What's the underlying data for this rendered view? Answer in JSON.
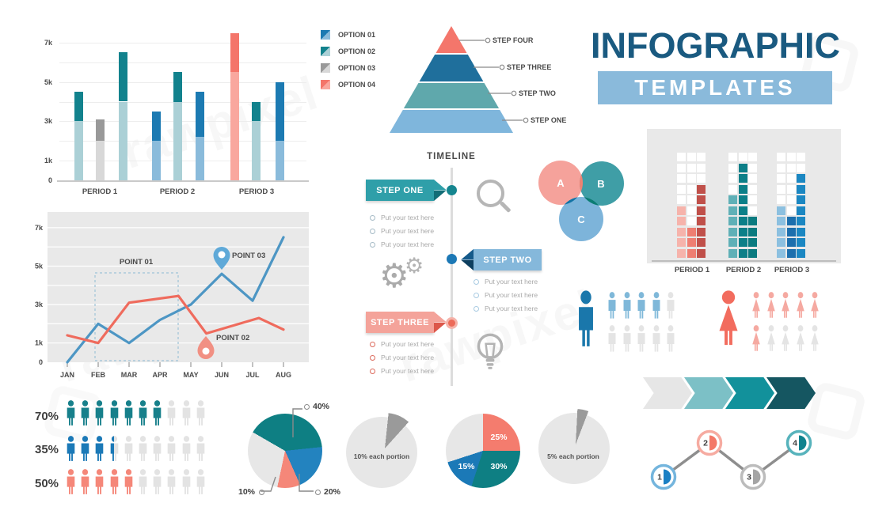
{
  "title": {
    "main": "INFOGRAPHIC",
    "sub": "TEMPLATES",
    "accent": "#1a5a80",
    "bar_color": "#8abadb"
  },
  "watermark": "rawpixel",
  "chart_data": [
    {
      "id": "stacked_bar",
      "type": "bar",
      "title": "",
      "categories": [
        "PERIOD 1",
        "PERIOD 2",
        "PERIOD 3"
      ],
      "y_ticks": [
        0,
        1,
        3,
        5,
        7
      ],
      "y_tick_labels": [
        "0",
        "1k",
        "3k",
        "5k",
        "7k"
      ],
      "ylim": [
        0,
        7.8
      ],
      "legend": [
        "OPTION 01",
        "OPTION 02",
        "OPTION 03",
        "OPTION 04"
      ],
      "legend_palettes": [
        "blue",
        "teal",
        "gray",
        "salmon"
      ],
      "unit": "thousands",
      "bars": [
        {
          "group": 0,
          "palette": "teal",
          "base": 3.0,
          "top": 1.5
        },
        {
          "group": 0,
          "palette": "gray",
          "base": 2.0,
          "top": 1.1
        },
        {
          "group": 0,
          "palette": "teal",
          "base": 4.0,
          "top": 2.5
        },
        {
          "group": 1,
          "palette": "blue",
          "base": 2.0,
          "top": 1.5
        },
        {
          "group": 1,
          "palette": "teal",
          "base": 4.0,
          "top": 1.5
        },
        {
          "group": 1,
          "palette": "blue",
          "base": 2.2,
          "top": 2.3
        },
        {
          "group": 2,
          "palette": "salmon",
          "base": 5.5,
          "top": 2.0
        },
        {
          "group": 2,
          "palette": "teal",
          "base": 3.0,
          "top": 1.0
        },
        {
          "group": 2,
          "palette": "blue",
          "base": 2.0,
          "top": 3.0
        }
      ],
      "palettes": {
        "teal": [
          "#abd0d6",
          "#12828d"
        ],
        "gray": [
          "#d8d8d8",
          "#999999"
        ],
        "blue": [
          "#8abbdb",
          "#1c7ab2"
        ],
        "salmon": [
          "#f9a79e",
          "#f4756a"
        ]
      }
    },
    {
      "id": "line",
      "type": "line",
      "x": [
        "JAN",
        "FEB",
        "MAR",
        "APR",
        "MAY",
        "JUN",
        "JUL",
        "AUG"
      ],
      "y_ticks": [
        0,
        1,
        3,
        5,
        7
      ],
      "y_tick_labels": [
        "0",
        "1k",
        "3k",
        "5k",
        "7k"
      ],
      "plot_bg": "#e9e9e9",
      "series": [
        {
          "name": "series-blue",
          "color": "#4d96c4",
          "points": [
            [
              0,
              0
            ],
            [
              1,
              2.0
            ],
            [
              2,
              1.0
            ],
            [
              3,
              2.2
            ],
            [
              4,
              3.0
            ],
            [
              5,
              4.6
            ],
            [
              6,
              3.2
            ],
            [
              7,
              6.5
            ]
          ]
        },
        {
          "name": "series-red",
          "color": "#ef6b5d",
          "points": [
            [
              0,
              1.4
            ],
            [
              1,
              1.0
            ],
            [
              2,
              3.1
            ],
            [
              3.6,
              3.45
            ],
            [
              4.5,
              1.5
            ],
            [
              6.2,
              2.3
            ],
            [
              7,
              1.7
            ]
          ]
        }
      ],
      "annotations": [
        {
          "label": "POINT 01"
        },
        {
          "label": "POINT 02",
          "pin_color": "#f19083"
        },
        {
          "label": "POINT 03",
          "pin_color": "#5fa9d8"
        }
      ]
    },
    {
      "id": "pyramid",
      "type": "pyramid",
      "steps": [
        "STEP ONE",
        "STEP TWO",
        "STEP THREE",
        "STEP FOUR"
      ],
      "colors": [
        "#7fb6dc",
        "#5fa8ac",
        "#1f6f9c",
        "#f4766b"
      ]
    },
    {
      "id": "timeline",
      "type": "timeline",
      "title": "TIMELINE",
      "steps": [
        {
          "label": "STEP ONE",
          "side": "left",
          "color": "#2f9fa9",
          "point": [
            "#2f9fa9",
            "#126d76"
          ],
          "dot": "#15858f",
          "dot_style": "solid",
          "bullet_color": "#a5bac6",
          "icon": "magnifier-icon",
          "bullets": [
            "Put your text here",
            "Put your text here",
            "Put your text here"
          ]
        },
        {
          "label": "STEP TWO",
          "side": "right",
          "color": "#85b8db",
          "point": [
            "#155a8a",
            "#0d3f5f"
          ],
          "dot": "#1c78b5",
          "dot_style": "solid",
          "bullet_color": "#a8cbe2",
          "icon": "gears-icon",
          "bullets": [
            "Put your text here",
            "Put your text here",
            "Put your text here"
          ]
        },
        {
          "label": "STEP THREE",
          "side": "left",
          "color": "#f4a39a",
          "point": [
            "#f4a39a",
            "#dc574a"
          ],
          "dot": "#ed6a58",
          "dot_style": "ring",
          "bullet_color": "#dc6a5c",
          "icon": "bulb-icon",
          "bullets": [
            "Put your text here",
            "Put your text here",
            "Put your text here"
          ]
        }
      ]
    },
    {
      "id": "venn",
      "type": "venn",
      "sets": [
        {
          "label": "A",
          "color": "#f5a29b"
        },
        {
          "label": "B",
          "color": "#3f9ea6"
        },
        {
          "label": "C",
          "color": "#7db4da"
        }
      ],
      "overlaps": {
        "AB": "#ef8272",
        "AC": "#1273a5",
        "BC": "#0b7d73",
        "ABC": "#ffffff"
      }
    },
    {
      "id": "pixel_bar",
      "type": "bar",
      "max_units": 10,
      "categories": [
        "PERIOD 1",
        "PERIOD 2",
        "PERIOD 3"
      ],
      "panel_bg": "#e9e9e9",
      "empty_color": "#ffffff",
      "columns": [
        {
          "group": 0,
          "color": "#f6b3ab",
          "value": 5
        },
        {
          "group": 0,
          "color": "#ee7e72",
          "value": 3
        },
        {
          "group": 0,
          "color": "#c0504a",
          "value": 7
        },
        {
          "group": 1,
          "color": "#5fb0b7",
          "value": 6
        },
        {
          "group": 1,
          "color": "#0c7f88",
          "value": 9
        },
        {
          "group": 1,
          "color": "#0b7b80",
          "value": 4
        },
        {
          "group": 2,
          "color": "#8cc0e0",
          "value": 5
        },
        {
          "group": 2,
          "color": "#1c6fad",
          "value": 4
        },
        {
          "group": 2,
          "color": "#1b87c2",
          "value": 8
        }
      ]
    },
    {
      "id": "gender",
      "type": "pictograph",
      "groups": [
        {
          "icon": "male",
          "big_color": "#1a77ab",
          "total": 10,
          "filled": 4,
          "fill_color": "#7fb8d9",
          "empty_color": "#e4e4e4"
        },
        {
          "icon": "female",
          "big_color": "#f26c5e",
          "total": 10,
          "filled": 6,
          "fill_color": "#f5a9a1",
          "empty_color": "#e4e4e4"
        }
      ]
    },
    {
      "id": "percent_people",
      "type": "pictograph",
      "empty_color": "#e3e3e3",
      "rows": [
        {
          "label": "70%",
          "filled": 7,
          "total": 10,
          "color": "#17808b"
        },
        {
          "label": "35%",
          "filled": 3.5,
          "total": 10,
          "color": "#1b79b7"
        },
        {
          "label": "50%",
          "filled": 5,
          "total": 10,
          "color": "#f58779"
        }
      ]
    },
    {
      "id": "pie1",
      "type": "pie",
      "start_angle": -60,
      "slices": [
        {
          "label": "40%",
          "value": 40,
          "color": "#0e7f83"
        },
        {
          "label": "20%",
          "value": 20,
          "color": "#2383bf"
        },
        {
          "label": "10%",
          "value": 10,
          "color": "#f58779"
        },
        {
          "label": "",
          "value": 30,
          "color": "#e7e7e7"
        }
      ]
    },
    {
      "id": "pie2",
      "type": "pie",
      "label": "10% each portion",
      "start_angle": 6,
      "slices": [
        {
          "value": 10,
          "color": "#9a9a9a"
        },
        {
          "value": 90,
          "color": "#e7e7e7"
        }
      ]
    },
    {
      "id": "pie3",
      "type": "pie",
      "start_angle": 0,
      "slices": [
        {
          "label": "25%",
          "value": 25,
          "color": "#f47c6e"
        },
        {
          "label": "30%",
          "value": 30,
          "color": "#0e7f83"
        },
        {
          "label": "15%",
          "value": 15,
          "color": "#1b79b7"
        },
        {
          "label": "",
          "value": 30,
          "color": "#e7e7e7"
        }
      ]
    },
    {
      "id": "pie4",
      "type": "pie",
      "label": "5% each portion",
      "start_angle": 3,
      "slices": [
        {
          "value": 5,
          "color": "#9a9a9a"
        },
        {
          "value": 95,
          "color": "#e7e7e7"
        }
      ]
    },
    {
      "id": "chevrons",
      "type": "process",
      "colors": [
        "#e6e6e6",
        "#7cc0c6",
        "#12919b",
        "#155661"
      ]
    },
    {
      "id": "zigzag",
      "type": "process",
      "nodes": [
        {
          "n": "1",
          "ring": "#74b5dd",
          "fill": "#1b80c4"
        },
        {
          "n": "2",
          "ring": "#f6aba1",
          "fill": "#f37868"
        },
        {
          "n": "3",
          "ring": "#bcbcbc",
          "fill": "#a5a5a5"
        },
        {
          "n": "4",
          "ring": "#57b3bc",
          "fill": "#0e828e"
        }
      ]
    }
  ]
}
